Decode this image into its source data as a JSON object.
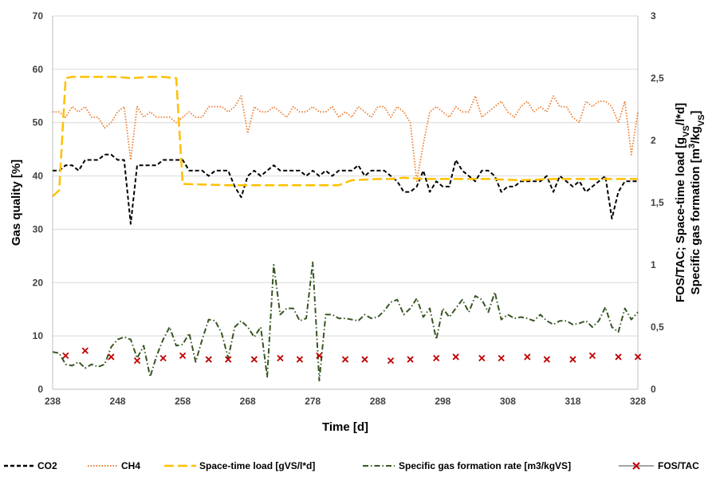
{
  "chart_data": {
    "type": "line",
    "xlabel": "Time [d]",
    "ylabel": "Gas quality [%]",
    "y2label": "FOS/TAC; Space-time load [gVS/l*d] Specific gas formation [m3/kgVS]",
    "y2label_lines": [
      {
        "prefix": "FOS/TAC; Space-time load [g",
        "sub": "VS",
        "suffix": "/l*d]"
      },
      {
        "prefix": "Specific gas formation [m",
        "sup": "3",
        "prefix2": "/kg",
        "sub": "VS",
        "suffix": "]"
      }
    ],
    "xlim": [
      238,
      328
    ],
    "ylim": [
      0,
      70
    ],
    "y2lim": [
      0,
      3
    ],
    "x_ticks": [
      238,
      248,
      258,
      268,
      278,
      288,
      298,
      308,
      318,
      328
    ],
    "y_ticks": [
      0,
      10,
      20,
      30,
      40,
      50,
      60,
      70
    ],
    "y2_ticks": [
      "0",
      "0,5",
      "1",
      "1,5",
      "2",
      "2,5",
      "3"
    ],
    "grid": "horizontal",
    "legend_position": "bottom",
    "series": [
      {
        "name": "CO2",
        "axis": "left",
        "color": "#000000",
        "style": "dashed",
        "x": [
          238,
          239,
          240,
          241,
          242,
          243,
          244,
          245,
          246,
          247,
          248,
          249,
          250,
          251,
          252,
          253,
          254,
          255,
          256,
          257,
          258,
          259,
          260,
          261,
          262,
          263,
          264,
          265,
          266,
          267,
          268,
          269,
          270,
          271,
          272,
          273,
          274,
          275,
          276,
          277,
          278,
          279,
          280,
          281,
          282,
          283,
          284,
          285,
          286,
          287,
          288,
          289,
          290,
          291,
          292,
          293,
          294,
          295,
          296,
          297,
          298,
          299,
          300,
          301,
          302,
          303,
          304,
          305,
          306,
          307,
          308,
          309,
          310,
          311,
          312,
          313,
          314,
          315,
          316,
          317,
          318,
          319,
          320,
          321,
          322,
          323,
          324,
          325,
          326,
          327,
          328
        ],
        "y": [
          41,
          41,
          42,
          42,
          41,
          43,
          43,
          43,
          44,
          44,
          43,
          43,
          31,
          42,
          42,
          42,
          42,
          43,
          43,
          43,
          43,
          41,
          41,
          41,
          40,
          41,
          41,
          41,
          38,
          36,
          40,
          41,
          40,
          41,
          42,
          41,
          41,
          41,
          41,
          40,
          41,
          40,
          41,
          40,
          41,
          41,
          41,
          42,
          40,
          41,
          41,
          41,
          40,
          39,
          37,
          37,
          38,
          41,
          37,
          39,
          38,
          38,
          43,
          41,
          40,
          39,
          41,
          41,
          40,
          37,
          38,
          38,
          39,
          39,
          39,
          39,
          40,
          37,
          40,
          39,
          38,
          39,
          37,
          38,
          39,
          40,
          32,
          37,
          39,
          39,
          39
        ]
      },
      {
        "name": "CH4",
        "axis": "left",
        "color": "#ED7D31",
        "style": "dotted",
        "x": [
          238,
          239,
          240,
          241,
          242,
          243,
          244,
          245,
          246,
          247,
          248,
          249,
          250,
          251,
          252,
          253,
          254,
          255,
          256,
          257,
          258,
          259,
          260,
          261,
          262,
          263,
          264,
          265,
          266,
          267,
          268,
          269,
          270,
          271,
          272,
          273,
          274,
          275,
          276,
          277,
          278,
          279,
          280,
          281,
          282,
          283,
          284,
          285,
          286,
          287,
          288,
          289,
          290,
          291,
          292,
          293,
          294,
          295,
          296,
          297,
          298,
          299,
          300,
          301,
          302,
          303,
          304,
          305,
          306,
          307,
          308,
          309,
          310,
          311,
          312,
          313,
          314,
          315,
          316,
          317,
          318,
          319,
          320,
          321,
          322,
          323,
          324,
          325,
          326,
          327,
          328
        ],
        "y": [
          52,
          52,
          51,
          53,
          52,
          53,
          51,
          51,
          49,
          50,
          52,
          53,
          43,
          53,
          51,
          52,
          51,
          51,
          51,
          50,
          51,
          52,
          51,
          51,
          53,
          53,
          53,
          52,
          53,
          55,
          48,
          53,
          52,
          52,
          53,
          52,
          51,
          53,
          52,
          52,
          53,
          52,
          52,
          53,
          51,
          52,
          51,
          53,
          52,
          51,
          53,
          53,
          51,
          53,
          52,
          50,
          39,
          46,
          52,
          53,
          52,
          51,
          53,
          52,
          52,
          55,
          51,
          52,
          53,
          54,
          52,
          51,
          53,
          54,
          52,
          53,
          52,
          55,
          53,
          53,
          51,
          50,
          54,
          53,
          54,
          54,
          53,
          50,
          54,
          44,
          52
        ]
      },
      {
        "name": "Space-time load [gVS/l*d]",
        "axis": "right",
        "color": "#FFC000",
        "style": "long-dash",
        "x": [
          238,
          239,
          240,
          241,
          242,
          245,
          248,
          250,
          253,
          255,
          257,
          258,
          265,
          270,
          278,
          282,
          284,
          288,
          290,
          292,
          295,
          300,
          305,
          310,
          315,
          320,
          325,
          328
        ],
        "y": [
          1.55,
          1.6,
          2.5,
          2.51,
          2.51,
          2.51,
          2.51,
          2.5,
          2.51,
          2.51,
          2.5,
          1.65,
          1.64,
          1.64,
          1.64,
          1.64,
          1.68,
          1.69,
          1.69,
          1.7,
          1.69,
          1.69,
          1.69,
          1.68,
          1.69,
          1.69,
          1.69,
          1.69
        ]
      },
      {
        "name": "Specific gas formation rate [m3/kgVS]",
        "axis": "right",
        "color": "#375623",
        "style": "dash-dot",
        "x": [
          238,
          239,
          240,
          241,
          242,
          243,
          244,
          245,
          246,
          247,
          248,
          249,
          250,
          251,
          252,
          253,
          254,
          255,
          256,
          257,
          258,
          259,
          260,
          261,
          262,
          263,
          264,
          265,
          266,
          267,
          268,
          269,
          270,
          271,
          272,
          273,
          274,
          275,
          276,
          277,
          278,
          279,
          280,
          281,
          282,
          283,
          284,
          285,
          286,
          287,
          288,
          289,
          290,
          291,
          292,
          293,
          294,
          295,
          296,
          297,
          298,
          299,
          300,
          301,
          302,
          303,
          304,
          305,
          306,
          307,
          308,
          309,
          310,
          311,
          312,
          313,
          314,
          315,
          316,
          317,
          318,
          319,
          320,
          321,
          322,
          323,
          324,
          325,
          326,
          327,
          328
        ],
        "y": [
          0.3,
          0.29,
          0.2,
          0.19,
          0.22,
          0.17,
          0.2,
          0.18,
          0.2,
          0.34,
          0.4,
          0.42,
          0.4,
          0.25,
          0.35,
          0.1,
          0.27,
          0.4,
          0.5,
          0.35,
          0.36,
          0.45,
          0.22,
          0.4,
          0.56,
          0.55,
          0.45,
          0.25,
          0.5,
          0.55,
          0.5,
          0.42,
          0.5,
          0.1,
          1.0,
          0.6,
          0.65,
          0.65,
          0.55,
          0.57,
          1.02,
          0.07,
          0.6,
          0.6,
          0.57,
          0.57,
          0.56,
          0.55,
          0.6,
          0.57,
          0.58,
          0.63,
          0.7,
          0.72,
          0.6,
          0.65,
          0.73,
          0.58,
          0.65,
          0.4,
          0.65,
          0.58,
          0.65,
          0.72,
          0.62,
          0.75,
          0.72,
          0.62,
          0.78,
          0.56,
          0.6,
          0.57,
          0.58,
          0.57,
          0.55,
          0.6,
          0.55,
          0.52,
          0.55,
          0.55,
          0.52,
          0.53,
          0.55,
          0.5,
          0.55,
          0.66,
          0.5,
          0.46,
          0.65,
          0.56,
          0.62
        ]
      },
      {
        "name": "FOS/TAC",
        "axis": "right",
        "color": "#A5A5A5",
        "marker_color": "#C00000",
        "style": "marker-x",
        "x": [
          240,
          243,
          247,
          251,
          255,
          258,
          262,
          265,
          269,
          273,
          276,
          279,
          283,
          286,
          290,
          293,
          297,
          300,
          304,
          307,
          311,
          314,
          318,
          321,
          325,
          328
        ],
        "y": [
          0.27,
          0.31,
          0.26,
          0.23,
          0.25,
          0.27,
          0.24,
          0.24,
          0.24,
          0.25,
          0.24,
          0.27,
          0.24,
          0.24,
          0.23,
          0.24,
          0.25,
          0.26,
          0.25,
          0.25,
          0.26,
          0.24,
          0.24,
          0.27,
          0.26,
          0.26
        ]
      }
    ]
  }
}
